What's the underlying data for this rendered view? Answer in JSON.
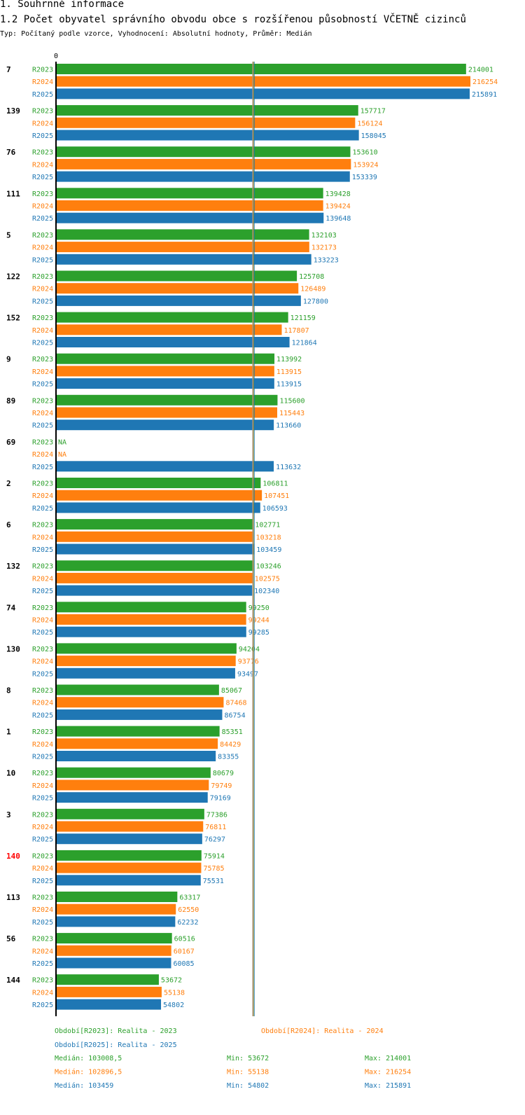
{
  "header": {
    "section": "1. Souhrnné informace",
    "title": "1.2 Počet obyvatel správního obvodu obce s rozšířenou působností VČETNĚ cizinců",
    "subtitle": "Typ: Počítaný podle vzorce, Vyhodnocení: Absolutní hodnoty, Průměr: Medián"
  },
  "chart_data": {
    "type": "bar",
    "orientation": "horizontal",
    "axis_zero_label": "0",
    "xlim": [
      0,
      216254
    ],
    "series": [
      {
        "name": "R2023",
        "color": "#2ca02c"
      },
      {
        "name": "R2024",
        "color": "#ff7f0e"
      },
      {
        "name": "R2025",
        "color": "#1f77b4"
      }
    ],
    "groups": [
      {
        "label": "7",
        "highlight": false,
        "values": [
          214001,
          216254,
          215891
        ]
      },
      {
        "label": "139",
        "highlight": false,
        "values": [
          157717,
          156124,
          158045
        ]
      },
      {
        "label": "76",
        "highlight": false,
        "values": [
          153610,
          153924,
          153339
        ]
      },
      {
        "label": "111",
        "highlight": false,
        "values": [
          139428,
          139424,
          139648
        ]
      },
      {
        "label": "5",
        "highlight": false,
        "values": [
          132103,
          132173,
          133223
        ]
      },
      {
        "label": "122",
        "highlight": false,
        "values": [
          125708,
          126489,
          127800
        ]
      },
      {
        "label": "152",
        "highlight": false,
        "values": [
          121159,
          117807,
          121864
        ]
      },
      {
        "label": "9",
        "highlight": false,
        "values": [
          113992,
          113915,
          113915
        ]
      },
      {
        "label": "89",
        "highlight": false,
        "values": [
          115600,
          115443,
          113660
        ]
      },
      {
        "label": "69",
        "highlight": false,
        "values": [
          null,
          null,
          113632
        ]
      },
      {
        "label": "2",
        "highlight": false,
        "values": [
          106811,
          107451,
          106593
        ]
      },
      {
        "label": "6",
        "highlight": false,
        "values": [
          102771,
          103218,
          103459
        ]
      },
      {
        "label": "132",
        "highlight": false,
        "values": [
          103246,
          102575,
          102340
        ]
      },
      {
        "label": "74",
        "highlight": false,
        "values": [
          99250,
          99244,
          99285
        ]
      },
      {
        "label": "130",
        "highlight": false,
        "values": [
          94204,
          93776,
          93497
        ]
      },
      {
        "label": "8",
        "highlight": false,
        "values": [
          85067,
          87468,
          86754
        ]
      },
      {
        "label": "1",
        "highlight": false,
        "values": [
          85351,
          84429,
          83355
        ]
      },
      {
        "label": "10",
        "highlight": false,
        "values": [
          80679,
          79749,
          79169
        ]
      },
      {
        "label": "3",
        "highlight": false,
        "values": [
          77386,
          76811,
          76297
        ]
      },
      {
        "label": "140",
        "highlight": true,
        "values": [
          75914,
          75785,
          75531
        ]
      },
      {
        "label": "113",
        "highlight": false,
        "values": [
          63317,
          62550,
          62232
        ]
      },
      {
        "label": "56",
        "highlight": false,
        "values": [
          60516,
          60167,
          60085
        ]
      },
      {
        "label": "144",
        "highlight": false,
        "values": [
          53672,
          55138,
          54802
        ]
      }
    ],
    "na_label": "NA",
    "medians": [
      103008.5,
      102896.5,
      103459
    ],
    "legend": {
      "periods": [
        "Období[R2023]: Realita - 2023",
        "Období[R2024]: Realita - 2024",
        "Období[R2025]: Realita - 2025"
      ],
      "stats": [
        [
          "Medián: 103008,5",
          "Min: 53672",
          "Max: 214001"
        ],
        [
          "Medián: 102896,5",
          "Min: 55138",
          "Max: 216254"
        ],
        [
          "Medián: 103459",
          "Min: 54802",
          "Max: 215891"
        ]
      ]
    },
    "colors": {
      "highlight": "#ff0000",
      "axis": "#000000",
      "median_line": "#999999"
    }
  }
}
